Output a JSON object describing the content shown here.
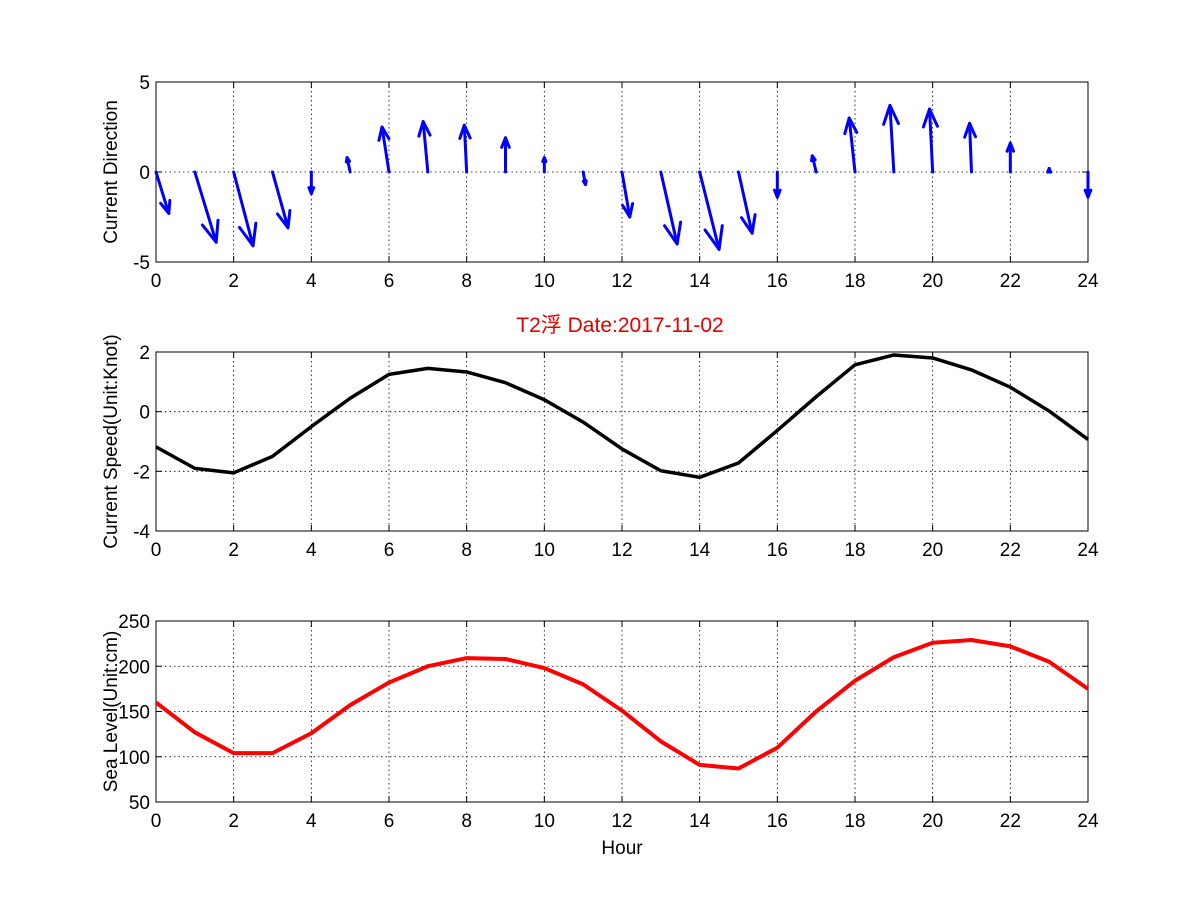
{
  "title": "T2浮    Date:2017-11-02",
  "colors": {
    "quiver": "#0000ff",
    "speed": "#000000",
    "sealevel": "#ff0000",
    "title": "#e00000"
  },
  "chart_data": [
    {
      "type": "quiver",
      "ylabel": "Current Direction",
      "xlim": [
        0,
        24
      ],
      "ylim": [
        -5,
        5
      ],
      "grid": true,
      "xticks": [
        0,
        2,
        4,
        6,
        8,
        10,
        12,
        14,
        16,
        18,
        20,
        22,
        24
      ],
      "yticks": [
        -5,
        0,
        5
      ],
      "x": [
        0,
        1,
        2,
        3,
        4,
        5,
        6,
        7,
        8,
        9,
        10,
        11,
        12,
        13,
        14,
        15,
        16,
        17,
        18,
        19,
        20,
        21,
        22,
        23,
        24
      ],
      "u": [
        0.33,
        0.55,
        0.5,
        0.4,
        0,
        -0.08,
        -0.18,
        -0.12,
        -0.06,
        0,
        0,
        0.06,
        0.2,
        0.42,
        0.5,
        0.35,
        0,
        -0.1,
        -0.15,
        -0.1,
        -0.08,
        -0.05,
        0,
        0,
        0
      ],
      "v": [
        -2.3,
        -3.9,
        -4.1,
        -3.1,
        -1.2,
        0.8,
        2.5,
        2.8,
        2.6,
        1.9,
        0.8,
        -0.7,
        -2.5,
        -4.0,
        -4.3,
        -3.4,
        -1.4,
        0.9,
        3.0,
        3.7,
        3.5,
        2.7,
        1.6,
        0.2,
        -1.4
      ]
    },
    {
      "type": "line",
      "ylabel": "Current Speed(Unit:Knot)",
      "xlim": [
        0,
        24
      ],
      "ylim": [
        -4,
        2
      ],
      "grid": true,
      "xticks": [
        0,
        2,
        4,
        6,
        8,
        10,
        12,
        14,
        16,
        18,
        20,
        22,
        24
      ],
      "yticks": [
        -4,
        -2,
        0,
        2
      ],
      "series": [
        {
          "x": [
            0,
            1,
            2,
            3,
            4,
            5,
            6,
            7,
            8,
            9,
            10,
            11,
            12,
            13,
            14,
            15,
            16,
            17,
            18,
            19,
            20,
            21,
            22,
            23,
            24
          ],
          "y": [
            -1.18,
            -1.9,
            -2.05,
            -1.5,
            -0.5,
            0.45,
            1.25,
            1.45,
            1.33,
            0.97,
            0.4,
            -0.35,
            -1.25,
            -1.98,
            -2.2,
            -1.72,
            -0.63,
            0.5,
            1.57,
            1.9,
            1.8,
            1.4,
            0.82,
            0.02,
            -0.93
          ]
        }
      ]
    },
    {
      "type": "line",
      "xlabel": "Hour",
      "ylabel": "Sea Level(Unit:cm)",
      "xlim": [
        0,
        24
      ],
      "ylim": [
        50,
        250
      ],
      "grid": true,
      "xticks": [
        0,
        2,
        4,
        6,
        8,
        10,
        12,
        14,
        16,
        18,
        20,
        22,
        24
      ],
      "yticks": [
        50,
        100,
        150,
        200,
        250
      ],
      "series": [
        {
          "x": [
            0,
            1,
            2,
            3,
            4,
            5,
            6,
            7,
            8,
            9,
            10,
            11,
            12,
            13,
            14,
            15,
            16,
            17,
            18,
            19,
            20,
            21,
            22,
            23,
            24
          ],
          "y": [
            160,
            127,
            104,
            104,
            126,
            157,
            182,
            200,
            209,
            208,
            198,
            180,
            151,
            117,
            91,
            87,
            110,
            150,
            184,
            210,
            226,
            229,
            222,
            205,
            175
          ]
        }
      ]
    }
  ]
}
